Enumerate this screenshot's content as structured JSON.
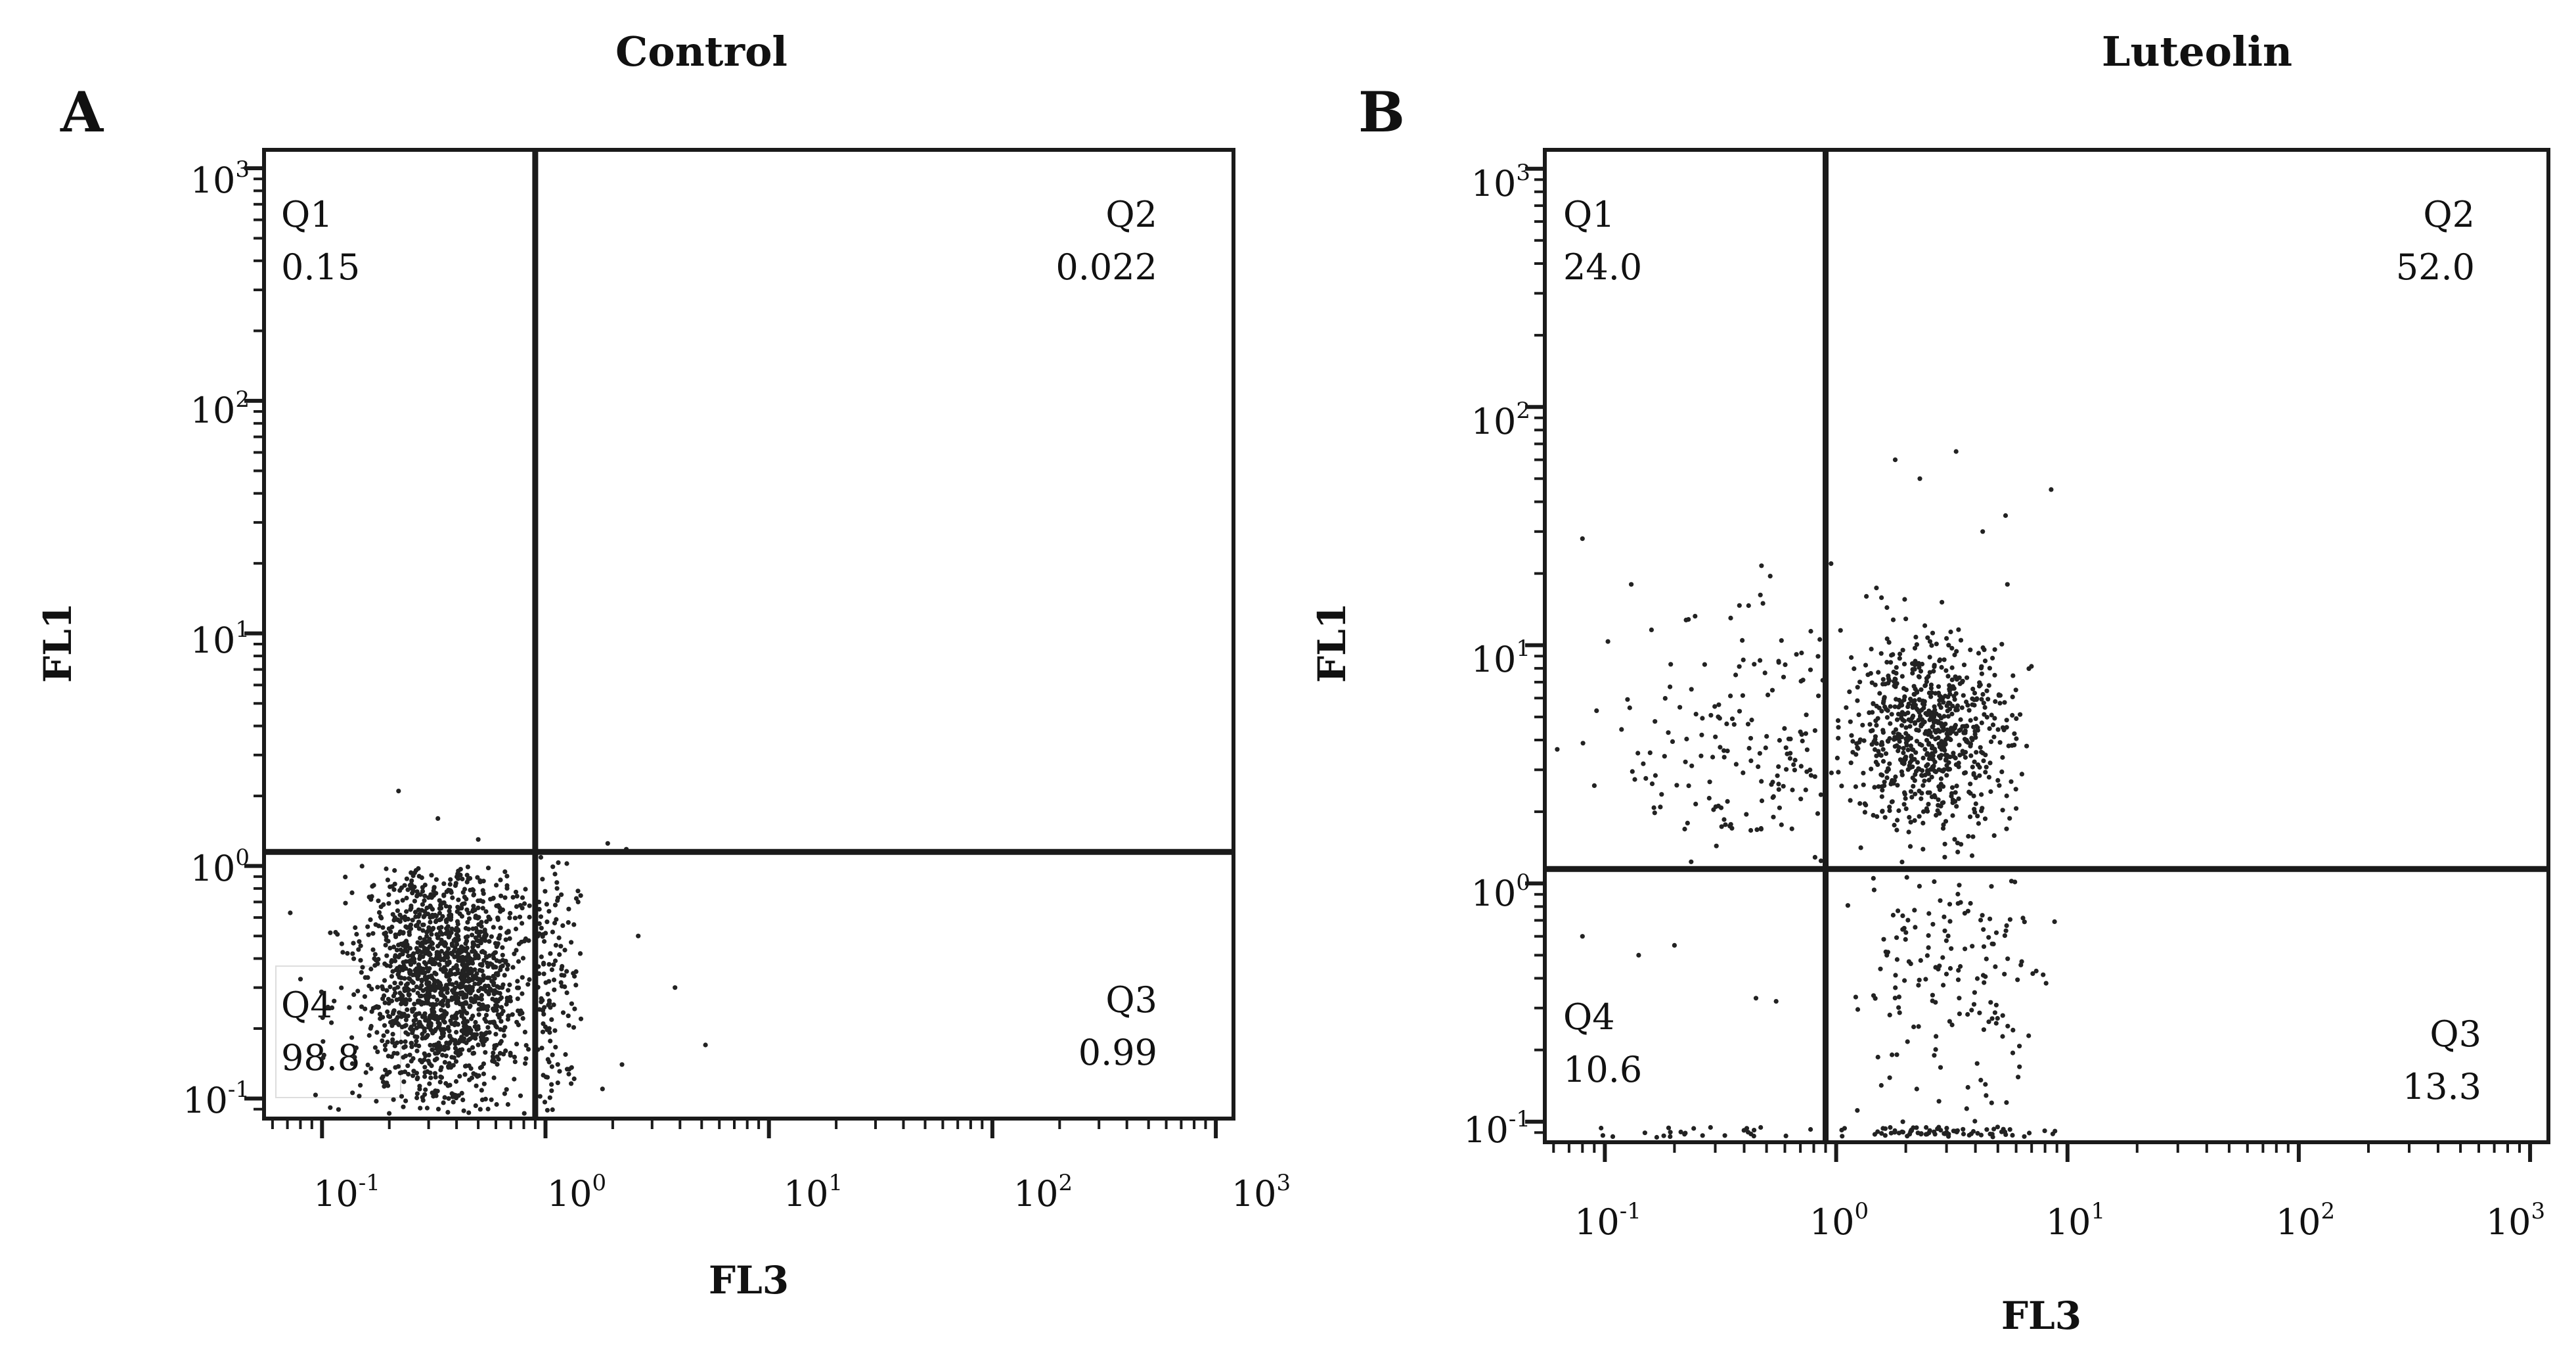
{
  "chart_data": [
    {
      "type": "scatter",
      "panel_letter": "A",
      "title": "Control",
      "xlabel": "FL3",
      "ylabel": "FL1",
      "x_scale": "log",
      "y_scale": "log",
      "xlim": [
        0.055,
        1200
      ],
      "ylim": [
        0.082,
        1200
      ],
      "x_ticks": [
        {
          "base": "10",
          "exp": "-1"
        },
        {
          "base": "10",
          "exp": "0"
        },
        {
          "base": "10",
          "exp": "1"
        },
        {
          "base": "10",
          "exp": "2"
        },
        {
          "base": "10",
          "exp": "3"
        }
      ],
      "y_ticks": [
        {
          "base": "10",
          "exp": "-1"
        },
        {
          "base": "10",
          "exp": "0"
        },
        {
          "base": "10",
          "exp": "1"
        },
        {
          "base": "10",
          "exp": "2"
        },
        {
          "base": "10",
          "exp": "3"
        }
      ],
      "gate": {
        "x": 0.9,
        "y": 1.15
      },
      "quadrants": [
        {
          "label": "Q1",
          "value": "0.15",
          "position": "top-left"
        },
        {
          "label": "Q2",
          "value": "0.022",
          "position": "top-right"
        },
        {
          "label": "Q3",
          "value": "0.99",
          "position": "bottom-right"
        },
        {
          "label": "Q4",
          "value": "98.8",
          "position": "bottom-left"
        }
      ],
      "clusters": [
        {
          "count": 1500,
          "x_center": 0.36,
          "x_spread": 0.2,
          "y_center": 0.32,
          "y_spread": 0.28,
          "x_range": [
            0.062,
            0.85
          ],
          "y_range": [
            0.086,
            1.0
          ]
        },
        {
          "count": 130,
          "x_center": 1.05,
          "x_spread": 0.08,
          "y_center": 0.3,
          "y_spread": 0.3,
          "x_range": [
            0.92,
            1.45
          ],
          "y_range": [
            0.086,
            1.1
          ]
        }
      ],
      "outliers": [
        [
          0.22,
          2.1
        ],
        [
          0.33,
          1.6
        ],
        [
          0.5,
          1.3
        ],
        [
          1.9,
          1.25
        ],
        [
          2.3,
          1.18
        ],
        [
          1.4,
          0.7
        ],
        [
          2.6,
          0.5
        ],
        [
          3.8,
          0.3
        ],
        [
          5.2,
          0.17
        ],
        [
          2.2,
          0.14
        ],
        [
          1.8,
          0.11
        ]
      ]
    },
    {
      "type": "scatter",
      "panel_letter": "B",
      "title": "Luteolin",
      "xlabel": "FL3",
      "ylabel": "FL1",
      "x_scale": "log",
      "y_scale": "log",
      "xlim": [
        0.055,
        1200
      ],
      "ylim": [
        0.082,
        1200
      ],
      "x_ticks": [
        {
          "base": "10",
          "exp": "-1"
        },
        {
          "base": "10",
          "exp": "0"
        },
        {
          "base": "10",
          "exp": "1"
        },
        {
          "base": "10",
          "exp": "2"
        },
        {
          "base": "10",
          "exp": "3"
        }
      ],
      "y_ticks": [
        {
          "base": "10",
          "exp": "-1"
        },
        {
          "base": "10",
          "exp": "0"
        },
        {
          "base": "10",
          "exp": "1"
        },
        {
          "base": "10",
          "exp": "2"
        },
        {
          "base": "10",
          "exp": "3"
        }
      ],
      "gate": {
        "x": 0.9,
        "y": 1.15
      },
      "quadrants": [
        {
          "label": "Q1",
          "value": "24.0",
          "position": "top-left"
        },
        {
          "label": "Q2",
          "value": "52.0",
          "position": "top-right"
        },
        {
          "label": "Q3",
          "value": "13.3",
          "position": "bottom-right"
        },
        {
          "label": "Q4",
          "value": "10.6",
          "position": "bottom-left"
        }
      ],
      "clusters": [
        {
          "count": 750,
          "x_center": 2.5,
          "x_spread": 0.18,
          "y_center": 4.3,
          "y_spread": 0.2,
          "x_range": [
            0.95,
            9.5
          ],
          "y_range": [
            1.2,
            30
          ]
        },
        {
          "count": 170,
          "x_center": 0.55,
          "x_spread": 0.35,
          "y_center": 3.5,
          "y_spread": 0.3,
          "x_range": [
            0.062,
            0.88
          ],
          "y_range": [
            1.2,
            30
          ]
        },
        {
          "count": 160,
          "x_center": 3.2,
          "x_spread": 0.25,
          "y_center": 0.4,
          "y_spread": 0.3,
          "x_range": [
            0.95,
            9.0
          ],
          "y_range": [
            0.086,
            1.1
          ]
        },
        {
          "count": 70,
          "x_center": 2.8,
          "x_spread": 0.25,
          "y_center": 0.09,
          "y_spread": 0.02,
          "x_range": [
            0.95,
            9.0
          ],
          "y_range": [
            0.086,
            0.095
          ]
        },
        {
          "count": 25,
          "x_center": 0.3,
          "x_spread": 0.4,
          "y_center": 0.09,
          "y_spread": 0.02,
          "x_range": [
            0.062,
            0.88
          ],
          "y_range": [
            0.086,
            0.095
          ]
        }
      ],
      "outliers": [
        [
          1.8,
          60
        ],
        [
          3.3,
          65
        ],
        [
          2.3,
          50
        ],
        [
          4.3,
          30
        ],
        [
          5.4,
          35
        ],
        [
          8.5,
          45
        ],
        [
          0.95,
          22
        ],
        [
          0.08,
          28
        ],
        [
          0.13,
          18
        ],
        [
          0.35,
          13
        ],
        [
          5.5,
          18
        ],
        [
          0.08,
          0.6
        ],
        [
          0.14,
          0.5
        ],
        [
          0.45,
          0.33
        ],
        [
          0.55,
          0.32
        ],
        [
          0.2,
          0.55
        ],
        [
          6.2,
          0.17
        ],
        [
          4.7,
          0.12
        ]
      ]
    }
  ]
}
